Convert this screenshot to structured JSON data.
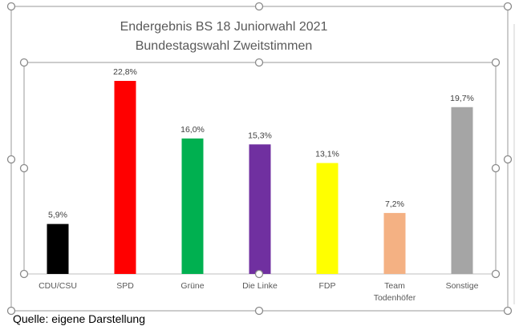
{
  "chart_data": {
    "type": "bar",
    "title": [
      "Endergebnis BS 18 Juniorwahl 2021",
      "Bundestagswahl Zweitstimmen"
    ],
    "categories": [
      "CDU/CSU",
      "SPD",
      "Grüne",
      "Die Linke",
      "FDP",
      "Team Todenhöfer",
      "Sonstige"
    ],
    "values": [
      5.9,
      22.8,
      16.0,
      15.3,
      13.1,
      7.2,
      19.7
    ],
    "data_labels": [
      "5,9%",
      "22,8%",
      "16,0%",
      "15,3%",
      "13,1%",
      "7,2%",
      "19,7%"
    ],
    "colors": [
      "#000000",
      "#ff0000",
      "#00b050",
      "#7030a0",
      "#ffff00",
      "#f4b183",
      "#a5a5a5"
    ],
    "unit": "%",
    "ylim": [
      0,
      22.8
    ],
    "grid": false,
    "legend": "none",
    "xlabel": "",
    "ylabel": ""
  },
  "source": "Quelle: eigene Darstellung"
}
